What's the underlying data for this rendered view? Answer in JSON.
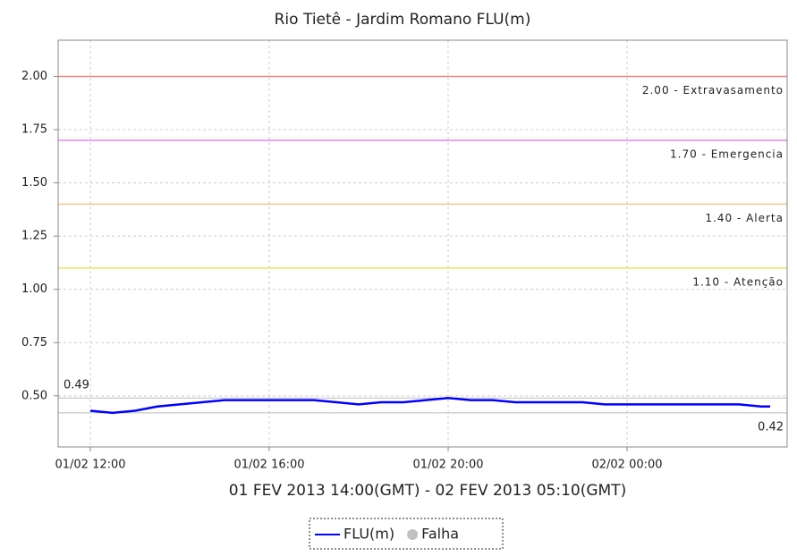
{
  "chart_data": {
    "type": "line",
    "title": "Rio Tietê - Jardim Romano FLU(m)",
    "x_label": "01 FEV 2013 14:00(GMT) - 02 FEV 2013 05:10(GMT)",
    "xlim": [
      11.28,
      27.58
    ],
    "xticks": [
      {
        "value": 12,
        "label": "01/02 12:00"
      },
      {
        "value": 16,
        "label": "01/02 16:00"
      },
      {
        "value": 20,
        "label": "01/02 20:00"
      },
      {
        "value": 24,
        "label": "02/02 00:00"
      }
    ],
    "ylim": [
      0.26,
      2.17
    ],
    "yticks": [
      {
        "value": 0.5,
        "label": "0.50"
      },
      {
        "value": 0.75,
        "label": "0.75"
      },
      {
        "value": 1.0,
        "label": "1.00"
      },
      {
        "value": 1.25,
        "label": "1.25"
      },
      {
        "value": 1.5,
        "label": "1.50"
      },
      {
        "value": 1.75,
        "label": "1.75"
      },
      {
        "value": 2.0,
        "label": "2.00"
      }
    ],
    "grid": true,
    "thresholds": [
      {
        "value": 2.0,
        "label": "2.00 - Extravasamento",
        "color": "#f08080"
      },
      {
        "value": 1.7,
        "label": "1.70 - Emergencia",
        "color": "#ee82ee"
      },
      {
        "value": 1.4,
        "label": "1.40 - Alerta",
        "color": "#f5c78a"
      },
      {
        "value": 1.1,
        "label": "1.10 - Atenção",
        "color": "#f0e060"
      }
    ],
    "max": 0.49,
    "min": 0.42,
    "x": [
      12,
      12.5,
      13,
      13.5,
      14,
      14.5,
      15,
      15.5,
      16,
      16.5,
      17,
      17.5,
      18,
      18.5,
      19,
      19.5,
      20,
      20.5,
      21,
      21.5,
      22,
      22.5,
      23,
      23.5,
      24,
      24.5,
      25,
      25.5,
      26,
      26.5,
      27,
      27.2
    ],
    "series": [
      {
        "name": "FLU(m)",
        "color": "#0000ff",
        "values": [
          0.43,
          0.42,
          0.43,
          0.45,
          0.46,
          0.47,
          0.48,
          0.48,
          0.48,
          0.48,
          0.48,
          0.47,
          0.46,
          0.47,
          0.47,
          0.48,
          0.49,
          0.48,
          0.48,
          0.47,
          0.47,
          0.47,
          0.47,
          0.46,
          0.46,
          0.46,
          0.46,
          0.46,
          0.46,
          0.46,
          0.45,
          0.45
        ]
      }
    ],
    "legend_items": [
      {
        "name": "Falha",
        "color": "#c0c0c0"
      }
    ]
  }
}
